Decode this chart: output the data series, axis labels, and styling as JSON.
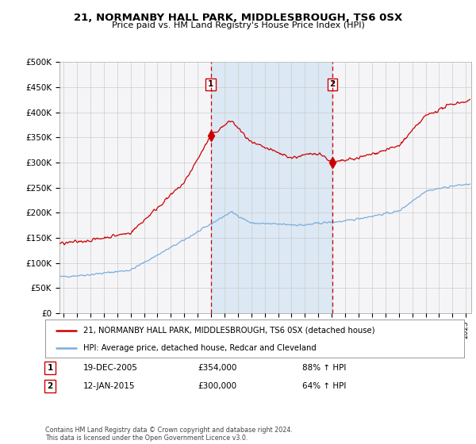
{
  "title1": "21, NORMANBY HALL PARK, MIDDLESBROUGH, TS6 0SX",
  "title2": "Price paid vs. HM Land Registry's House Price Index (HPI)",
  "ylim": [
    0,
    500000
  ],
  "yticks": [
    0,
    50000,
    100000,
    150000,
    200000,
    250000,
    300000,
    350000,
    400000,
    450000,
    500000
  ],
  "ytick_labels": [
    "£0",
    "£50K",
    "£100K",
    "£150K",
    "£200K",
    "£250K",
    "£300K",
    "£350K",
    "£400K",
    "£450K",
    "£500K"
  ],
  "sale1_date": 2005.97,
  "sale1_price": 354000,
  "sale2_date": 2015.04,
  "sale2_price": 300000,
  "sale1_text": "19-DEC-2005",
  "sale1_amount": "£354,000",
  "sale1_hpi": "88% ↑ HPI",
  "sale2_text": "12-JAN-2015",
  "sale2_amount": "£300,000",
  "sale2_hpi": "64% ↑ HPI",
  "legend_property": "21, NORMANBY HALL PARK, MIDDLESBROUGH, TS6 0SX (detached house)",
  "legend_hpi": "HPI: Average price, detached house, Redcar and Cleveland",
  "footer": "Contains HM Land Registry data © Crown copyright and database right 2024.\nThis data is licensed under the Open Government Licence v3.0.",
  "property_color": "#cc0000",
  "hpi_color": "#7aaddc",
  "vline_color": "#cc0000",
  "bg_color": "#f0f4f8",
  "span_color": "#dce8f4",
  "grid_color": "#cccccc",
  "xlim_start": 1994.7,
  "xlim_end": 2025.4
}
